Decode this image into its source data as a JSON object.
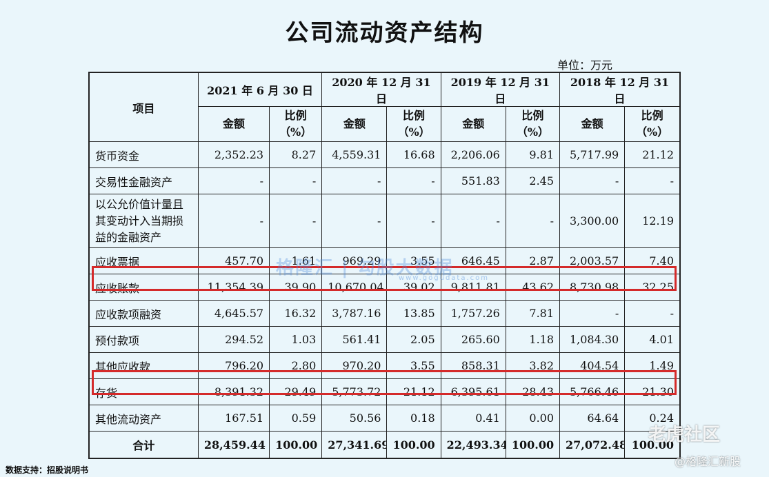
{
  "title": "公司流动资产结构",
  "unit": "单位：万元",
  "header": {
    "item": "项目",
    "periods": [
      "2021 年 6 月 30 日",
      "2020 年 12 月 31 日",
      "2019 年 12 月 31 日",
      "2018 年 12 月 31 日"
    ],
    "amount": "金额",
    "ratio_line1": "比例",
    "ratio_line2": "（%）"
  },
  "rows": [
    {
      "label": "货币资金",
      "values": [
        "2,352.23",
        "8.27",
        "4,559.31",
        "16.68",
        "2,206.06",
        "9.81",
        "5,717.99",
        "21.12"
      ]
    },
    {
      "label": "交易性金融资产",
      "values": [
        "-",
        "-",
        "-",
        "-",
        "551.83",
        "2.45",
        "-",
        "-"
      ]
    },
    {
      "label": "以公允价值计量且其变动计入当期损益的金融资产",
      "values": [
        "-",
        "-",
        "-",
        "-",
        "-",
        "-",
        "3,300.00",
        "12.19"
      ]
    },
    {
      "label": "应收票据",
      "values": [
        "457.70",
        "1.61",
        "969.29",
        "3.55",
        "646.45",
        "2.87",
        "2,003.57",
        "7.40"
      ]
    },
    {
      "label": "应收账款",
      "values": [
        "11,354.39",
        "39.90",
        "10,670.04",
        "39.02",
        "9,811.81",
        "43.62",
        "8,730.98",
        "32.25"
      ]
    },
    {
      "label": "应收款项融资",
      "values": [
        "4,645.57",
        "16.32",
        "3,787.16",
        "13.85",
        "1,757.26",
        "7.81",
        "-",
        "-"
      ]
    },
    {
      "label": "预付款项",
      "values": [
        "294.52",
        "1.03",
        "561.41",
        "2.05",
        "265.60",
        "1.18",
        "1,084.30",
        "4.01"
      ]
    },
    {
      "label": "其他应收款",
      "values": [
        "796.20",
        "2.80",
        "970.20",
        "3.55",
        "858.31",
        "3.82",
        "404.54",
        "1.49"
      ]
    },
    {
      "label": "存货",
      "values": [
        "8,391.32",
        "29.49",
        "5,773.72",
        "21.12",
        "6,395.61",
        "28.43",
        "5,766.46",
        "21.30"
      ]
    },
    {
      "label": "其他流动资产",
      "values": [
        "167.51",
        "0.59",
        "50.56",
        "0.18",
        "0.41",
        "0.00",
        "64.64",
        "0.24"
      ]
    }
  ],
  "total": {
    "label": "合计",
    "values": [
      "28,459.44",
      "100.00",
      "27,341.69",
      "100.00",
      "22,493.34",
      "100.00",
      "27,072.48",
      "100.00"
    ]
  },
  "highlight_color": "#d42a2a",
  "watermark": {
    "brand": "格隆汇 | 勾股大数据",
    "url": "www.gogudata.com"
  },
  "source": "数据支持：招股说明书",
  "overlay_tiger": "老虎社区",
  "overlay_gelong": "@格隆汇新股"
}
